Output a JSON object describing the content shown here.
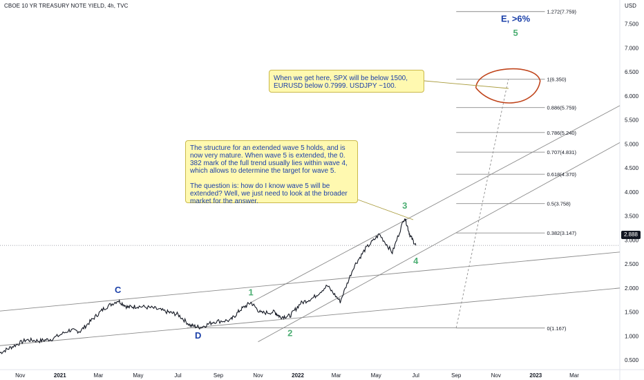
{
  "header": {
    "title": "CBOE 10 YR TREASURY NOTE YIELD, 4h, TVC",
    "currency": "USD"
  },
  "last_price": "2.888",
  "callouts": {
    "targets_lines": [
      "When we get here, SPX will be below 1500,",
      "EURUSD below 0.7999. USDJPY ~100."
    ],
    "structure_lines": [
      "The structure for an extended wave 5 holds, and is",
      "now very mature. When wave 5 is extended, the 0.",
      "382 mark of the full trend usually lies within wave 4,",
      "which allows to determine the target for wave 5."
    ],
    "question_lines": [
      "The question is: how do I know wave 5 will be",
      "extended? Well, we just need to look at the broader",
      "market for the answer."
    ]
  },
  "colors": {
    "price_line": "#131722",
    "grid_text": "#131722",
    "wave_green": "#4cae73",
    "wave_blue": "#1a3fa8",
    "trend_lines": "#8a8a8a",
    "fib_lines": "#8a8a8a",
    "ellipse": "#c0451c",
    "callout_bg": "#fff9b0",
    "price_tag_bg": "#131722"
  },
  "chart_data": {
    "type": "line",
    "title": "CBOE 10 YR TREASURY NOTE YIELD, 4h, TVC",
    "yunit": "USD",
    "ylim": [
      0.3,
      8.0
    ],
    "y_ticks": [
      "0.500",
      "1.000",
      "1.500",
      "2.000",
      "2.500",
      "3.000",
      "3.500",
      "4.000",
      "4.500",
      "5.000",
      "5.500",
      "6.000",
      "6.500",
      "7.000",
      "7.500"
    ],
    "x_ticks": [
      "Nov",
      "2021",
      "Mar",
      "May",
      "Jul",
      "Sep",
      "Nov",
      "2022",
      "Mar",
      "May",
      "Jul",
      "Sep",
      "Nov",
      "2023",
      "Mar"
    ],
    "x_range": [
      "2020-10-01",
      "2023-05-10"
    ],
    "series": [
      {
        "points": [
          [
            "2020-10-01",
            0.65
          ],
          [
            "2020-10-20",
            0.78
          ],
          [
            "2020-11-10",
            0.92
          ],
          [
            "2020-12-01",
            0.9
          ],
          [
            "2020-12-20",
            0.94
          ],
          [
            "2021-01-15",
            1.12
          ],
          [
            "2021-02-01",
            1.1
          ],
          [
            "2021-02-20",
            1.35
          ],
          [
            "2021-03-10",
            1.58
          ],
          [
            "2021-03-31",
            1.74
          ],
          [
            "2021-04-15",
            1.6
          ],
          [
            "2021-05-01",
            1.62
          ],
          [
            "2021-05-25",
            1.58
          ],
          [
            "2021-06-15",
            1.5
          ],
          [
            "2021-07-01",
            1.45
          ],
          [
            "2021-07-20",
            1.22
          ],
          [
            "2021-08-05",
            1.18
          ],
          [
            "2021-08-25",
            1.3
          ],
          [
            "2021-09-20",
            1.33
          ],
          [
            "2021-10-05",
            1.55
          ],
          [
            "2021-10-21",
            1.7
          ],
          [
            "2021-11-05",
            1.48
          ],
          [
            "2021-11-26",
            1.5
          ],
          [
            "2021-12-05",
            1.4
          ],
          [
            "2021-12-20",
            1.42
          ],
          [
            "2022-01-05",
            1.68
          ],
          [
            "2022-01-25",
            1.8
          ],
          [
            "2022-02-15",
            2.05
          ],
          [
            "2022-03-07",
            1.72
          ],
          [
            "2022-03-28",
            2.45
          ],
          [
            "2022-04-15",
            2.82
          ],
          [
            "2022-05-06",
            3.12
          ],
          [
            "2022-05-26",
            2.74
          ],
          [
            "2022-06-14",
            3.48
          ],
          [
            "2022-06-22",
            3.1
          ],
          [
            "2022-07-01",
            2.888
          ]
        ]
      }
    ],
    "wave_labels": [
      {
        "label": "C",
        "date": "2021-03-31",
        "value": 1.9,
        "color": "blue"
      },
      {
        "label": "D",
        "date": "2021-08-01",
        "value": 0.95,
        "color": "blue"
      },
      {
        "label": "1",
        "date": "2021-10-21",
        "value": 1.85,
        "color": "green"
      },
      {
        "label": "2",
        "date": "2021-12-20",
        "value": 1.0,
        "color": "green"
      },
      {
        "label": "3",
        "date": "2022-06-14",
        "value": 3.65,
        "color": "green"
      },
      {
        "label": "4",
        "date": "2022-07-01",
        "value": 2.5,
        "color": "green"
      },
      {
        "label": "5",
        "date": "2022-12-01",
        "value": 7.25,
        "color": "green"
      },
      {
        "label": "E, >6%",
        "date": "2022-12-01",
        "value": 7.55,
        "color": "blue"
      }
    ],
    "fib_levels": [
      {
        "label": "1.272(7.759)",
        "value": 7.759
      },
      {
        "label": "1(6.350)",
        "value": 6.35
      },
      {
        "label": "0.886(5.759)",
        "value": 5.759
      },
      {
        "label": "0.786(5.240)",
        "value": 5.24
      },
      {
        "label": "0.707(4.831)",
        "value": 4.831
      },
      {
        "label": "0.618(4.370)",
        "value": 4.37
      },
      {
        "label": "0.5(3.758)",
        "value": 3.758
      },
      {
        "label": "0.382(3.147)",
        "value": 3.147
      },
      {
        "label": "0(1.167)",
        "value": 1.167
      }
    ],
    "fib_start": "2022-09-01",
    "fib_end": "2023-01-15",
    "trend_lines": [
      {
        "from": [
          "2020-10-01",
          0.8
        ],
        "to": [
          "2023-05-10",
          2.0
        ],
        "style": "solid"
      },
      {
        "from": [
          "2020-10-01",
          1.52
        ],
        "to": [
          "2023-05-10",
          2.75
        ],
        "style": "solid"
      },
      {
        "from": [
          "2021-10-21",
          1.7
        ],
        "to": [
          "2023-05-10",
          5.8
        ],
        "style": "solid"
      },
      {
        "from": [
          "2021-11-01",
          0.88
        ],
        "to": [
          "2023-05-10",
          5.03
        ],
        "style": "solid"
      },
      {
        "from": [
          "2021-07-15",
          1.17
        ],
        "to": [
          "2022-09-01",
          1.17
        ],
        "style": "solid"
      },
      {
        "from": [
          "2022-09-01",
          1.17
        ],
        "to": [
          "2022-11-20",
          6.35
        ],
        "style": "dashed"
      }
    ],
    "highlight_ellipse": {
      "date": "2022-11-20",
      "value": 6.2,
      "label_ref": "target zone"
    }
  }
}
